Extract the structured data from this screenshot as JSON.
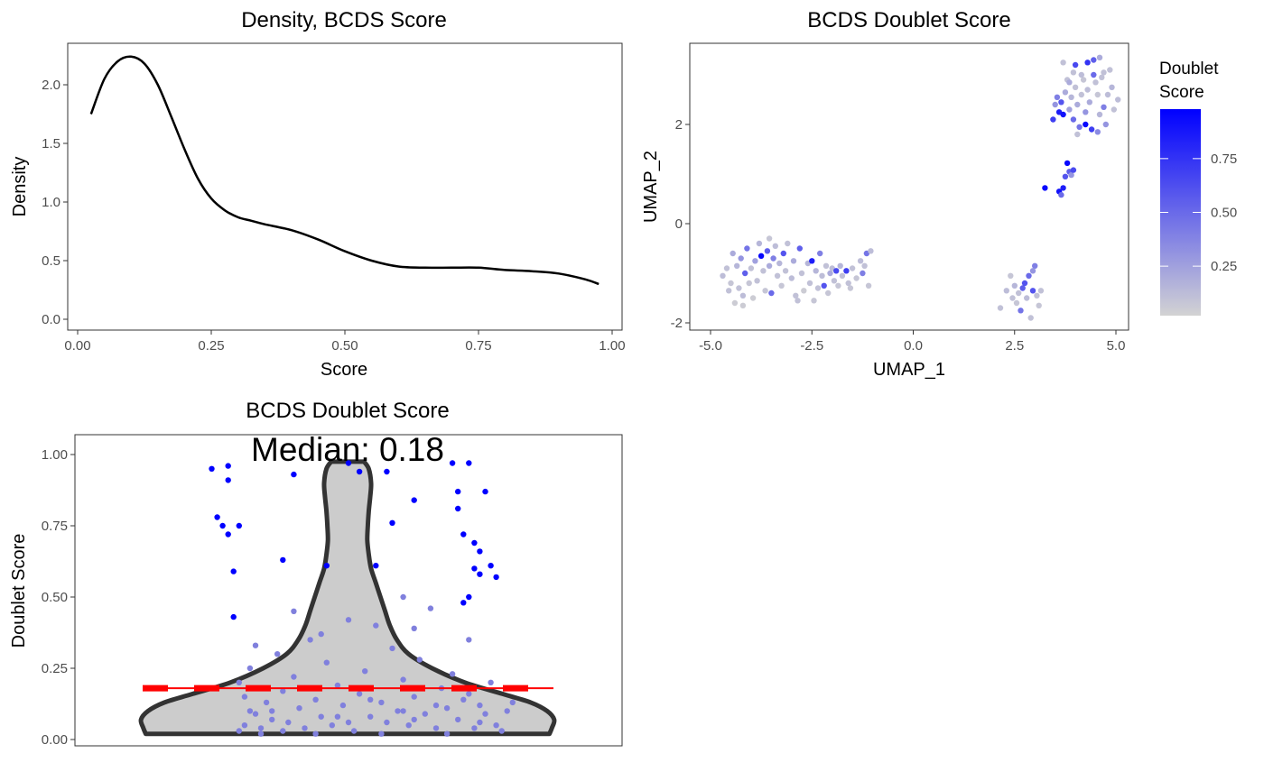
{
  "chart_data": [
    {
      "type": "line",
      "title": "Density, BCDS Score",
      "xlabel": "Score",
      "ylabel": "Density",
      "xlim": [
        0.0,
        1.0
      ],
      "ylim": [
        0.0,
        2.3
      ],
      "x_ticks": [
        "0.00",
        "0.25",
        "0.50",
        "0.75",
        "1.00"
      ],
      "y_ticks": [
        "0.0",
        "0.5",
        "1.0",
        "1.5",
        "2.0"
      ],
      "grid": false,
      "series": [
        {
          "x": [
            0.025,
            0.05,
            0.075,
            0.1,
            0.125,
            0.15,
            0.175,
            0.2,
            0.225,
            0.25,
            0.275,
            0.3,
            0.325,
            0.35,
            0.4,
            0.45,
            0.5,
            0.55,
            0.6,
            0.65,
            0.7,
            0.75,
            0.8,
            0.85,
            0.9,
            0.95,
            0.975
          ],
          "y": [
            1.75,
            2.05,
            2.2,
            2.24,
            2.18,
            2.0,
            1.73,
            1.45,
            1.2,
            1.03,
            0.93,
            0.87,
            0.84,
            0.81,
            0.76,
            0.68,
            0.58,
            0.5,
            0.45,
            0.44,
            0.44,
            0.44,
            0.42,
            0.41,
            0.39,
            0.34,
            0.3
          ]
        }
      ]
    },
    {
      "type": "scatter",
      "title": "BCDS Doublet Score",
      "xlabel": "UMAP_1",
      "ylabel": "UMAP_2",
      "xlim": [
        -5.5,
        5.5
      ],
      "ylim": [
        -2.1,
        3.6
      ],
      "x_ticks": [
        "-5.0",
        "-2.5",
        "0.0",
        "2.5",
        "5.0"
      ],
      "y_ticks": [
        "-2",
        "0",
        "2"
      ],
      "grid": false,
      "legend": {
        "title_lines": [
          "Doublet",
          "Score"
        ],
        "placement": "right",
        "low_color": "#d3d3d3",
        "high_color": "#0000ff",
        "range": [
          0.02,
          0.98
        ],
        "ticks": [
          "0.25",
          "0.50",
          "0.75"
        ]
      },
      "points": [
        [
          -4.7,
          -1.05,
          0.12
        ],
        [
          -4.6,
          -0.9,
          0.1
        ],
        [
          -4.5,
          -1.2,
          0.08
        ],
        [
          -4.45,
          -0.6,
          0.2
        ],
        [
          -4.4,
          -1.6,
          0.05
        ],
        [
          -4.35,
          -0.85,
          0.15
        ],
        [
          -4.3,
          -1.3,
          0.1
        ],
        [
          -4.25,
          -0.7,
          0.3
        ],
        [
          -4.2,
          -1.45,
          0.12
        ],
        [
          -4.15,
          -1.0,
          0.55
        ],
        [
          -4.1,
          -0.5,
          0.45
        ],
        [
          -4.05,
          -1.2,
          0.08
        ],
        [
          -4.0,
          -0.9,
          0.1
        ],
        [
          -3.95,
          -1.5,
          0.05
        ],
        [
          -3.9,
          -0.75,
          0.25
        ],
        [
          -3.85,
          -1.15,
          0.1
        ],
        [
          -3.8,
          -0.4,
          0.15
        ],
        [
          -3.75,
          -0.65,
          0.95
        ],
        [
          -3.7,
          -0.95,
          0.1
        ],
        [
          -3.65,
          -1.35,
          0.08
        ],
        [
          -3.6,
          -0.55,
          0.55
        ],
        [
          -3.55,
          -0.85,
          0.2
        ],
        [
          -3.5,
          -1.4,
          0.5
        ],
        [
          -3.45,
          -0.7,
          0.4
        ],
        [
          -3.4,
          -0.45,
          0.12
        ],
        [
          -3.35,
          -1.05,
          0.1
        ],
        [
          -3.3,
          -0.8,
          0.15
        ],
        [
          -3.25,
          -1.25,
          0.08
        ],
        [
          -3.2,
          -0.6,
          0.6
        ],
        [
          -3.15,
          -0.95,
          0.1
        ],
        [
          -3.1,
          -0.4,
          0.1
        ],
        [
          -3.0,
          -1.1,
          0.12
        ],
        [
          -2.95,
          -0.75,
          0.2
        ],
        [
          -2.9,
          -1.45,
          0.1
        ],
        [
          -2.8,
          -0.5,
          0.55
        ],
        [
          -2.75,
          -1.0,
          0.1
        ],
        [
          -2.7,
          -1.35,
          0.05
        ],
        [
          -2.6,
          -0.8,
          0.15
        ],
        [
          -2.55,
          -1.2,
          0.1
        ],
        [
          -2.5,
          -0.75,
          0.85
        ],
        [
          -2.45,
          -1.55,
          0.08
        ],
        [
          -2.4,
          -0.95,
          0.15
        ],
        [
          -2.35,
          -1.3,
          0.1
        ],
        [
          -2.3,
          -0.6,
          0.4
        ],
        [
          -2.25,
          -1.05,
          0.12
        ],
        [
          -2.2,
          -1.25,
          0.6
        ],
        [
          -2.15,
          -0.85,
          0.1
        ],
        [
          -2.1,
          -1.4,
          0.08
        ],
        [
          -2.05,
          -1.0,
          0.2
        ],
        [
          -2.0,
          -0.9,
          0.12
        ],
        [
          -1.95,
          -1.15,
          0.1
        ],
        [
          -1.9,
          -0.95,
          0.65
        ],
        [
          -1.85,
          -1.25,
          0.08
        ],
        [
          -1.8,
          -0.85,
          0.15
        ],
        [
          -1.75,
          -1.05,
          0.1
        ],
        [
          -1.65,
          -0.95,
          0.7
        ],
        [
          -1.6,
          -1.2,
          0.1
        ],
        [
          -1.5,
          -0.9,
          0.1
        ],
        [
          -1.4,
          -1.1,
          0.08
        ],
        [
          -1.3,
          -0.75,
          0.12
        ],
        [
          -1.25,
          -1.0,
          0.4
        ],
        [
          -1.2,
          -0.85,
          0.1
        ],
        [
          -1.15,
          -0.6,
          0.45
        ],
        [
          -1.1,
          -1.25,
          0.08
        ],
        [
          -1.05,
          -0.55,
          0.12
        ],
        [
          -4.2,
          -1.65,
          0.05
        ],
        [
          -4.55,
          -1.35,
          0.1
        ],
        [
          -3.55,
          -0.3,
          0.08
        ],
        [
          -2.85,
          -1.55,
          0.1
        ],
        [
          -1.55,
          -1.3,
          0.08
        ],
        [
          2.15,
          -1.7,
          0.1
        ],
        [
          2.3,
          -1.35,
          0.12
        ],
        [
          2.4,
          -1.05,
          0.08
        ],
        [
          2.45,
          -1.5,
          0.1
        ],
        [
          2.5,
          -1.25,
          0.15
        ],
        [
          2.55,
          -1.6,
          0.08
        ],
        [
          2.6,
          -1.4,
          0.1
        ],
        [
          2.65,
          -1.75,
          0.45
        ],
        [
          2.7,
          -1.3,
          0.55
        ],
        [
          2.75,
          -1.2,
          0.6
        ],
        [
          2.8,
          -1.5,
          0.12
        ],
        [
          2.85,
          -1.05,
          0.5
        ],
        [
          2.9,
          -1.9,
          0.1
        ],
        [
          2.95,
          -1.35,
          0.6
        ],
        [
          3.0,
          -0.85,
          0.4
        ],
        [
          3.05,
          -1.45,
          0.1
        ],
        [
          3.1,
          -1.65,
          0.08
        ],
        [
          3.15,
          -1.35,
          0.1
        ],
        [
          2.95,
          -0.95,
          0.3
        ],
        [
          3.25,
          0.72,
          0.95
        ],
        [
          3.6,
          0.65,
          0.9
        ],
        [
          3.65,
          0.58,
          0.5
        ],
        [
          3.7,
          0.72,
          0.85
        ],
        [
          3.75,
          0.95,
          0.6
        ],
        [
          3.8,
          1.22,
          0.95
        ],
        [
          3.85,
          1.05,
          0.55
        ],
        [
          3.9,
          0.98,
          0.3
        ],
        [
          3.95,
          1.08,
          0.65
        ],
        [
          3.45,
          2.1,
          0.7
        ],
        [
          3.5,
          2.4,
          0.3
        ],
        [
          3.55,
          2.55,
          0.4
        ],
        [
          3.6,
          2.25,
          0.85
        ],
        [
          3.65,
          2.45,
          0.6
        ],
        [
          3.7,
          2.2,
          0.9
        ],
        [
          3.75,
          2.65,
          0.2
        ],
        [
          3.8,
          2.9,
          0.1
        ],
        [
          3.85,
          2.3,
          0.25
        ],
        [
          3.9,
          2.55,
          0.15
        ],
        [
          3.95,
          2.1,
          0.5
        ],
        [
          4.0,
          2.75,
          0.1
        ],
        [
          4.05,
          2.4,
          0.2
        ],
        [
          4.1,
          1.95,
          0.45
        ],
        [
          4.15,
          2.6,
          0.1
        ],
        [
          4.2,
          2.9,
          0.08
        ],
        [
          4.25,
          2.25,
          0.3
        ],
        [
          4.3,
          2.7,
          0.12
        ],
        [
          4.35,
          2.45,
          0.2
        ],
        [
          4.4,
          1.9,
          0.7
        ],
        [
          4.45,
          3.0,
          0.5
        ],
        [
          4.5,
          2.85,
          0.1
        ],
        [
          4.55,
          2.6,
          0.08
        ],
        [
          4.6,
          2.2,
          0.15
        ],
        [
          4.65,
          2.95,
          0.1
        ],
        [
          4.7,
          2.35,
          0.4
        ],
        [
          4.75,
          2.0,
          0.3
        ],
        [
          4.8,
          2.6,
          0.12
        ],
        [
          4.85,
          3.1,
          0.1
        ],
        [
          4.9,
          2.75,
          0.15
        ],
        [
          4.95,
          2.3,
          0.1
        ],
        [
          5.05,
          2.5,
          0.12
        ],
        [
          3.7,
          3.25,
          0.1
        ],
        [
          3.85,
          2.85,
          0.2
        ],
        [
          4.0,
          3.2,
          0.65
        ],
        [
          4.3,
          3.25,
          0.75
        ],
        [
          4.45,
          3.3,
          0.55
        ],
        [
          4.6,
          3.35,
          0.2
        ],
        [
          4.25,
          2.0,
          0.95
        ],
        [
          4.55,
          1.85,
          0.35
        ],
        [
          3.95,
          3.05,
          0.1
        ],
        [
          4.7,
          3.05,
          0.1
        ],
        [
          4.15,
          3.0,
          0.12
        ],
        [
          4.05,
          1.8,
          0.1
        ]
      ]
    },
    {
      "type": "violin",
      "title": "BCDS Doublet Score",
      "ylabel": "Doublet Score",
      "annotation": "Median: 0.18",
      "median": 0.18,
      "ylim": [
        -0.02,
        1.05
      ],
      "y_ticks": [
        "0.00",
        "0.25",
        "0.50",
        "0.75",
        "1.00"
      ],
      "grid": false,
      "colors": {
        "fill": "#cccccc",
        "outline": "#333333",
        "median_line": "#ff0000",
        "low_points": "#8080dd",
        "high_points": "#0000ff"
      },
      "profile": [
        [
          0.02,
          0.43
        ],
        [
          0.04,
          0.435
        ],
        [
          0.07,
          0.44
        ],
        [
          0.1,
          0.425
        ],
        [
          0.13,
          0.39
        ],
        [
          0.16,
          0.33
        ],
        [
          0.2,
          0.25
        ],
        [
          0.25,
          0.18
        ],
        [
          0.3,
          0.13
        ],
        [
          0.35,
          0.105
        ],
        [
          0.4,
          0.09
        ],
        [
          0.45,
          0.08
        ],
        [
          0.5,
          0.07
        ],
        [
          0.55,
          0.06
        ],
        [
          0.6,
          0.05
        ],
        [
          0.65,
          0.045
        ],
        [
          0.7,
          0.042
        ],
        [
          0.75,
          0.043
        ],
        [
          0.8,
          0.045
        ],
        [
          0.85,
          0.048
        ],
        [
          0.9,
          0.05
        ],
        [
          0.95,
          0.045
        ],
        [
          0.975,
          0.035
        ]
      ],
      "points": [
        [
          0.3,
          0.03
        ],
        [
          0.31,
          0.05
        ],
        [
          0.32,
          0.1
        ],
        [
          0.31,
          0.15
        ],
        [
          0.3,
          0.2
        ],
        [
          0.32,
          0.25
        ],
        [
          0.33,
          0.09
        ],
        [
          0.34,
          0.04
        ],
        [
          0.35,
          0.13
        ],
        [
          0.36,
          0.07
        ],
        [
          0.37,
          0.3
        ],
        [
          0.38,
          0.17
        ],
        [
          0.39,
          0.06
        ],
        [
          0.4,
          0.22
        ],
        [
          0.41,
          0.11
        ],
        [
          0.42,
          0.04
        ],
        [
          0.43,
          0.35
        ],
        [
          0.44,
          0.14
        ],
        [
          0.45,
          0.08
        ],
        [
          0.46,
          0.27
        ],
        [
          0.47,
          0.05
        ],
        [
          0.48,
          0.19
        ],
        [
          0.49,
          0.12
        ],
        [
          0.5,
          0.42
        ],
        [
          0.51,
          0.03
        ],
        [
          0.52,
          0.16
        ],
        [
          0.53,
          0.24
        ],
        [
          0.54,
          0.08
        ],
        [
          0.55,
          0.4
        ],
        [
          0.56,
          0.13
        ],
        [
          0.57,
          0.06
        ],
        [
          0.58,
          0.32
        ],
        [
          0.59,
          0.1
        ],
        [
          0.6,
          0.21
        ],
        [
          0.61,
          0.05
        ],
        [
          0.62,
          0.15
        ],
        [
          0.63,
          0.28
        ],
        [
          0.64,
          0.09
        ],
        [
          0.65,
          0.46
        ],
        [
          0.66,
          0.04
        ],
        [
          0.67,
          0.18
        ],
        [
          0.68,
          0.11
        ],
        [
          0.69,
          0.23
        ],
        [
          0.7,
          0.07
        ],
        [
          0.71,
          0.14
        ],
        [
          0.72,
          0.35
        ],
        [
          0.73,
          0.04
        ],
        [
          0.74,
          0.12
        ],
        [
          0.75,
          0.09
        ],
        [
          0.76,
          0.2
        ],
        [
          0.77,
          0.05
        ],
        [
          0.78,
          0.03
        ],
        [
          0.79,
          0.1
        ],
        [
          0.8,
          0.13
        ],
        [
          0.34,
          0.02
        ],
        [
          0.38,
          0.03
        ],
        [
          0.44,
          0.02
        ],
        [
          0.5,
          0.06
        ],
        [
          0.56,
          0.02
        ],
        [
          0.62,
          0.07
        ],
        [
          0.68,
          0.02
        ],
        [
          0.74,
          0.06
        ],
        [
          0.36,
          0.1
        ],
        [
          0.42,
          0.18
        ],
        [
          0.48,
          0.08
        ],
        [
          0.54,
          0.14
        ],
        [
          0.6,
          0.1
        ],
        [
          0.66,
          0.12
        ],
        [
          0.72,
          0.16
        ],
        [
          0.46,
          0.61
        ],
        [
          0.55,
          0.61
        ],
        [
          0.57,
          0.94
        ],
        [
          0.52,
          0.94
        ],
        [
          0.58,
          0.76
        ],
        [
          0.5,
          0.97
        ],
        [
          0.45,
          0.37
        ],
        [
          0.4,
          0.45
        ],
        [
          0.6,
          0.5
        ],
        [
          0.62,
          0.39
        ],
        [
          0.33,
          0.33
        ],
        [
          0.29,
          0.43
        ],
        [
          0.25,
          0.95
        ],
        [
          0.26,
          0.78
        ],
        [
          0.27,
          0.75
        ],
        [
          0.28,
          0.72
        ],
        [
          0.29,
          0.59
        ],
        [
          0.28,
          0.91
        ],
        [
          0.3,
          0.75
        ],
        [
          0.28,
          0.96
        ],
        [
          0.69,
          0.97
        ],
        [
          0.7,
          0.87
        ],
        [
          0.71,
          0.72
        ],
        [
          0.72,
          0.97
        ],
        [
          0.73,
          0.6
        ],
        [
          0.74,
          0.66
        ],
        [
          0.75,
          0.87
        ],
        [
          0.76,
          0.61
        ],
        [
          0.77,
          0.57
        ],
        [
          0.7,
          0.81
        ],
        [
          0.72,
          0.5
        ],
        [
          0.71,
          0.48
        ],
        [
          0.74,
          0.58
        ],
        [
          0.62,
          0.84
        ],
        [
          0.73,
          0.69
        ],
        [
          0.4,
          0.93
        ],
        [
          0.38,
          0.63
        ]
      ]
    }
  ]
}
